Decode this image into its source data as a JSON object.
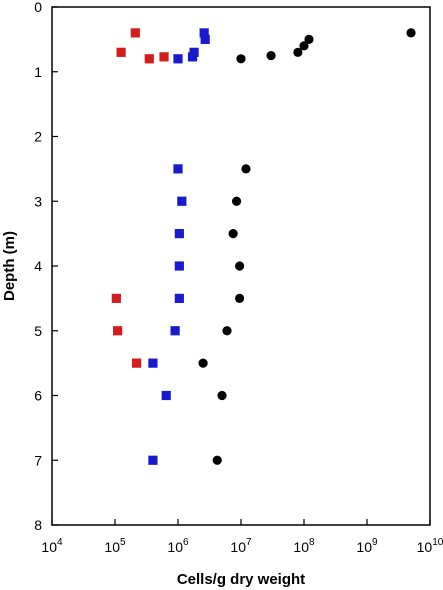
{
  "chart_data": {
    "type": "scatter",
    "title": "",
    "xlabel": "Cells/g dry weight",
    "ylabel": "Depth (m)",
    "x_scale": "log",
    "xlim": [
      10000,
      10000000000
    ],
    "ylim": [
      0,
      8
    ],
    "y_inverted": true,
    "grid": false,
    "x_ticks": [
      {
        "base": "10",
        "exp": "4",
        "value": 10000
      },
      {
        "base": "10",
        "exp": "5",
        "value": 100000
      },
      {
        "base": "10",
        "exp": "6",
        "value": 1000000
      },
      {
        "base": "10",
        "exp": "7",
        "value": 10000000
      },
      {
        "base": "10",
        "exp": "8",
        "value": 100000000
      },
      {
        "base": "10",
        "exp": "9",
        "value": 1000000000
      },
      {
        "base": "10",
        "exp": "10",
        "value": 10000000000
      }
    ],
    "y_ticks": [
      "0",
      "1",
      "2",
      "3",
      "4",
      "5",
      "6",
      "7",
      "8"
    ],
    "series": [
      {
        "marker": "circle",
        "color": "#000000",
        "points": [
          {
            "x": 5000000000,
            "y": 0.4
          },
          {
            "x": 120000000,
            "y": 0.5
          },
          {
            "x": 100000000,
            "y": 0.6
          },
          {
            "x": 80000000,
            "y": 0.7
          },
          {
            "x": 30000000,
            "y": 0.75
          },
          {
            "x": 10000000,
            "y": 0.8
          },
          {
            "x": 12000000,
            "y": 2.5
          },
          {
            "x": 8500000,
            "y": 3.0
          },
          {
            "x": 7500000,
            "y": 3.5
          },
          {
            "x": 9500000,
            "y": 4.0
          },
          {
            "x": 9500000,
            "y": 4.5
          },
          {
            "x": 6000000,
            "y": 5.0
          },
          {
            "x": 2500000,
            "y": 5.5
          },
          {
            "x": 5000000,
            "y": 6.0
          },
          {
            "x": 4200000,
            "y": 7.0
          }
        ]
      },
      {
        "marker": "square",
        "color": "#1a1acd",
        "points": [
          {
            "x": 2600000,
            "y": 0.4
          },
          {
            "x": 2700000,
            "y": 0.5
          },
          {
            "x": 1800000,
            "y": 0.7
          },
          {
            "x": 1700000,
            "y": 0.77
          },
          {
            "x": 1000000,
            "y": 0.8
          },
          {
            "x": 1000000,
            "y": 2.5
          },
          {
            "x": 1150000,
            "y": 3.0
          },
          {
            "x": 1050000,
            "y": 3.5
          },
          {
            "x": 1050000,
            "y": 4.0
          },
          {
            "x": 1050000,
            "y": 4.5
          },
          {
            "x": 900000,
            "y": 5.0
          },
          {
            "x": 400000,
            "y": 5.5
          },
          {
            "x": 650000,
            "y": 6.0
          },
          {
            "x": 400000,
            "y": 7.0
          }
        ]
      },
      {
        "marker": "square",
        "color": "#d41c1c",
        "points": [
          {
            "x": 210000,
            "y": 0.4
          },
          {
            "x": 125000,
            "y": 0.7
          },
          {
            "x": 350000,
            "y": 0.8
          },
          {
            "x": 600000,
            "y": 0.77
          },
          {
            "x": 105000,
            "y": 4.5
          },
          {
            "x": 110000,
            "y": 5.0
          },
          {
            "x": 220000,
            "y": 5.5
          }
        ]
      }
    ]
  }
}
